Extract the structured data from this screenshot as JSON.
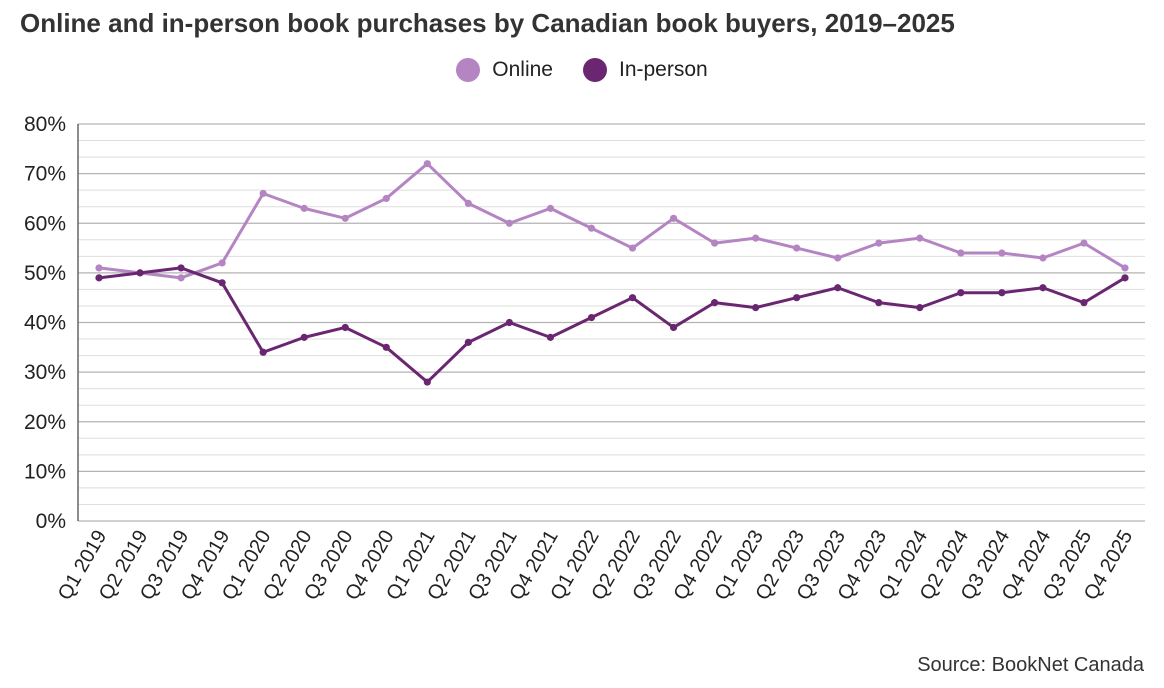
{
  "title": "Online and in-person book purchases by Canadian book buyers, 2019–2025",
  "source": "Source: BookNet Canada",
  "colors": {
    "online": "#b585c3",
    "in_person": "#6a2670"
  },
  "chart_data": {
    "type": "line",
    "title": "Online and in-person book purchases by Canadian book buyers, 2019–2025",
    "legend_placement": "top",
    "grid": true,
    "ylim": [
      0,
      80
    ],
    "y_ticks": [
      "0%",
      "10%",
      "20%",
      "30%",
      "40%",
      "50%",
      "60%",
      "70%",
      "80%"
    ],
    "y_unit": "%",
    "categories": [
      "Q1 2019",
      "Q2 2019",
      "Q3 2019",
      "Q4 2019",
      "Q1 2020",
      "Q2 2020",
      "Q3 2020",
      "Q4 2020",
      "Q1 2021",
      "Q2 2021",
      "Q3 2021",
      "Q4 2021",
      "Q1 2022",
      "Q2 2022",
      "Q3 2022",
      "Q4 2022",
      "Q1 2023",
      "Q2 2023",
      "Q3 2023",
      "Q4 2023",
      "Q1 2024",
      "Q2 2024",
      "Q3 2024",
      "Q4 2024",
      "Q3 2025",
      "Q4 2025"
    ],
    "series": [
      {
        "name": "Online",
        "color": "#b585c3",
        "values": [
          51,
          50,
          49,
          52,
          66,
          63,
          61,
          65,
          72,
          64,
          60,
          63,
          59,
          55,
          61,
          56,
          57,
          55,
          53,
          56,
          57,
          54,
          54,
          53,
          56,
          51
        ]
      },
      {
        "name": "In-person",
        "color": "#6a2670",
        "values": [
          49,
          50,
          51,
          48,
          34,
          37,
          39,
          35,
          28,
          36,
          40,
          37,
          41,
          45,
          39,
          44,
          43,
          45,
          47,
          44,
          43,
          46,
          46,
          47,
          44,
          49
        ]
      }
    ]
  }
}
